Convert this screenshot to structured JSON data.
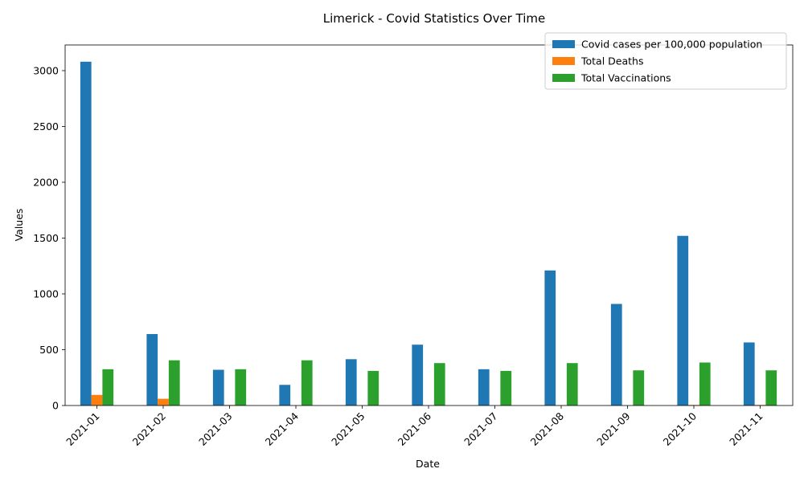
{
  "chart_data": {
    "type": "bar",
    "title": "Limerick - Covid Statistics Over Time",
    "xlabel": "Date",
    "ylabel": "Values",
    "categories": [
      "2021-01",
      "2021-02",
      "2021-03",
      "2021-04",
      "2021-05",
      "2021-06",
      "2021-07",
      "2021-08",
      "2021-09",
      "2021-10",
      "2021-11"
    ],
    "series": [
      {
        "name": "Covid cases per 100,000 population",
        "color": "#1f77b4",
        "values": [
          3080,
          640,
          320,
          185,
          415,
          545,
          325,
          1210,
          910,
          1520,
          565
        ]
      },
      {
        "name": "Total Deaths",
        "color": "#ff7f0e",
        "values": [
          95,
          60,
          5,
          0,
          0,
          0,
          0,
          2,
          0,
          5,
          5
        ]
      },
      {
        "name": "Total Vaccinations",
        "color": "#2ca02c",
        "values": [
          325,
          405,
          325,
          405,
          310,
          380,
          310,
          380,
          315,
          385,
          315
        ]
      }
    ],
    "ylim": [
      0,
      3230
    ],
    "yticks": [
      0,
      500,
      1000,
      1500,
      2000,
      2500,
      3000
    ],
    "grid": false,
    "legend_position": "top-right"
  }
}
